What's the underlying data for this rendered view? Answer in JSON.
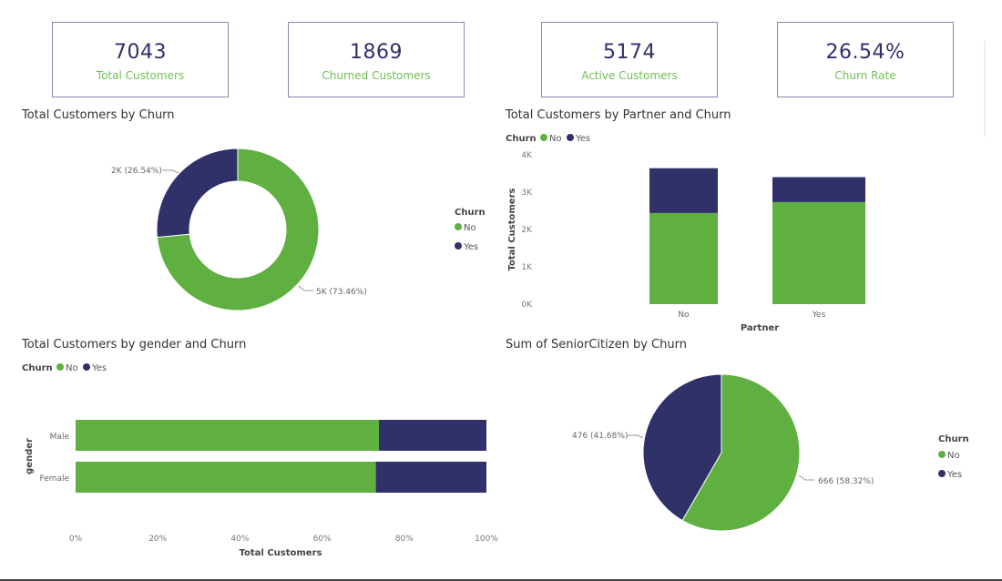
{
  "colors": {
    "no": "#5fb041",
    "yes": "#2f3168"
  },
  "kpis": [
    {
      "value": "7043",
      "label": "Total Customers"
    },
    {
      "value": "1869",
      "label": "Churned Customers"
    },
    {
      "value": "5174",
      "label": "Active Customers"
    },
    {
      "value": "26.54%",
      "label": "Churn Rate"
    }
  ],
  "chart_data": [
    {
      "type": "pie",
      "variant": "donut",
      "title": "Total Customers by Churn",
      "legend_title": "Churn",
      "legend_position": "right",
      "categories": [
        "No",
        "Yes"
      ],
      "values": [
        5174,
        1869
      ],
      "data_labels": [
        "5K (73.46%)",
        "2K (26.54%)"
      ]
    },
    {
      "type": "bar",
      "variant": "stacked-column",
      "title": "Total Customers by Partner and Churn",
      "legend_title": "Churn",
      "legend_position": "top-left",
      "xlabel": "Partner",
      "ylabel": "Total Customers",
      "categories": [
        "No",
        "Yes"
      ],
      "ylim": [
        0,
        4000
      ],
      "yticks": [
        "0K",
        "1K",
        "2K",
        "3K",
        "4K"
      ],
      "series": [
        {
          "name": "No",
          "values": [
            2441,
            2733
          ]
        },
        {
          "name": "Yes",
          "values": [
            1200,
            669
          ]
        }
      ]
    },
    {
      "type": "bar",
      "variant": "100%-stacked-bar",
      "title": "Total Customers by gender and Churn",
      "legend_title": "Churn",
      "legend_position": "top-left",
      "xlabel": "Total Customers",
      "ylabel": "gender",
      "categories": [
        "Male",
        "Female"
      ],
      "xlim": [
        0,
        100
      ],
      "xticks": [
        "0%",
        "20%",
        "40%",
        "60%",
        "80%",
        "100%"
      ],
      "series": [
        {
          "name": "No",
          "values": [
            73.84,
            73.08
          ]
        },
        {
          "name": "Yes",
          "values": [
            26.16,
            26.92
          ]
        }
      ]
    },
    {
      "type": "pie",
      "title": "Sum of SeniorCitizen by Churn",
      "legend_title": "Churn",
      "legend_position": "right",
      "categories": [
        "No",
        "Yes"
      ],
      "values": [
        666,
        476
      ],
      "data_labels": [
        "666 (58.32%)",
        "476 (41.68%)"
      ]
    }
  ]
}
